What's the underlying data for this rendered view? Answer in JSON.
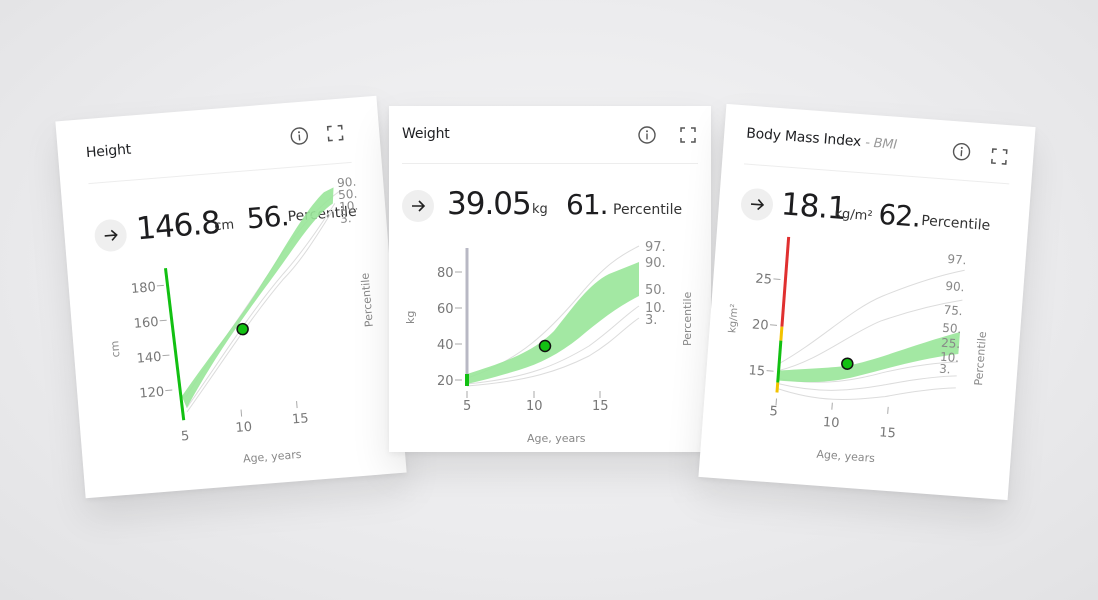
{
  "cards": [
    {
      "title": "Height",
      "value": "146.8",
      "unit": "cm",
      "percentile": "56.",
      "percentile_label": "Percentile",
      "ylabel": "cm",
      "xlabel": "Age, years",
      "right_label": "Percentile",
      "y_ticks": [
        "180",
        "160",
        "140",
        "120"
      ],
      "x_ticks": [
        "5",
        "10",
        "15"
      ],
      "curve_labels": [
        "90.",
        "50.",
        "10.",
        "3."
      ]
    },
    {
      "title": "Weight",
      "value": "39.05",
      "unit": "kg",
      "percentile": "61.",
      "percentile_label": "Percentile",
      "ylabel": "kg",
      "xlabel": "Age, years",
      "right_label": "Percentile",
      "y_ticks": [
        "80",
        "60",
        "40",
        "20"
      ],
      "x_ticks": [
        "5",
        "10",
        "15"
      ],
      "curve_labels": [
        "97.",
        "90.",
        "50.",
        "10.",
        "3."
      ]
    },
    {
      "title": "Body Mass Index",
      "subtitle": "- BMI",
      "value": "18.1",
      "unit": "kg/m²",
      "percentile": "62.",
      "percentile_label": "Percentile",
      "ylabel": "kg/m²",
      "xlabel": "Age, years",
      "right_label": "Percentile",
      "y_ticks": [
        "25",
        "20",
        "15"
      ],
      "x_ticks": [
        "5",
        "10",
        "15"
      ],
      "curve_labels": [
        "97.",
        "90.",
        "75.",
        "50.",
        "25.",
        "10.",
        "3."
      ]
    }
  ],
  "icons": {
    "info": "info-icon",
    "expand": "expand-icon",
    "arrow": "arrow-right-icon"
  },
  "colors": {
    "band": "#99e599",
    "green": "#12c012",
    "yellow": "#f2c200",
    "red": "#e03030",
    "gray_bar": "#b8b8c4",
    "curve": "#dcdcdc"
  }
}
